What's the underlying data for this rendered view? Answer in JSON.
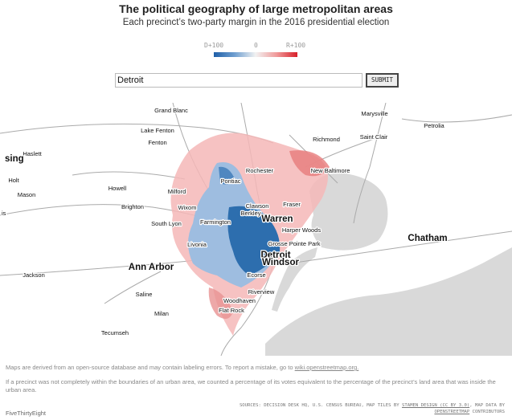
{
  "header": {
    "title": "The political geography of large metropolitan areas",
    "subtitle": "Each precinct’s two-party margin in the 2016 presidential election"
  },
  "legend": {
    "left": "D+100",
    "middle": "0",
    "right": "R+100"
  },
  "search": {
    "value": "Detroit",
    "button": "SUBMIT"
  },
  "map": {
    "labels": [
      "Grand Blanc",
      "Marysville",
      "Petrolia",
      "Lake Fenton",
      "Richmond",
      "Saint Clair",
      "Fenton",
      "Haslett",
      "sing",
      "Rochester",
      "New Baltimore",
      "Holt",
      "Pontiac",
      "Howell",
      "Milford",
      "Mason",
      "Clawson",
      "Fraser",
      "Brighton",
      "Wixom",
      "Berkley",
      "is",
      "Warren",
      "Farmington",
      "South Lyon",
      "Harper Woods",
      "Chatham",
      "Livonia",
      "Grosse Pointe Park",
      "Detroit",
      "Windsor",
      "Ann Arbor",
      "Ecorse",
      "Jackson",
      "Riverview",
      "Saline",
      "Woodhaven",
      "Flat Rock",
      "Milan",
      "Tecumseh"
    ]
  },
  "notes": {
    "disclaimer": "Maps are derived from an open-source database and may contain labeling errors. To report a mistake, go to ",
    "link": "wiki.openstreetmap.org.",
    "method": "If a precinct was not completely within the boundaries of an urban area, we counted a percentage of its votes equivalent to the percentage of the precinct’s land area that was inside the urban area."
  },
  "sources": {
    "part1": "SOURCES: DECISION DESK HQ, U.S. CENSUS BUREAU, MAP TILES BY ",
    "stamen": "STAMEN DESIGN (CC BY 3.0)",
    "part2": ", MAP DATA BY ",
    "osm": "OPENSTREETMAP",
    "part3": " CONTRIBUTORS"
  },
  "footer": {
    "brand": "FiveThirtyEight"
  }
}
